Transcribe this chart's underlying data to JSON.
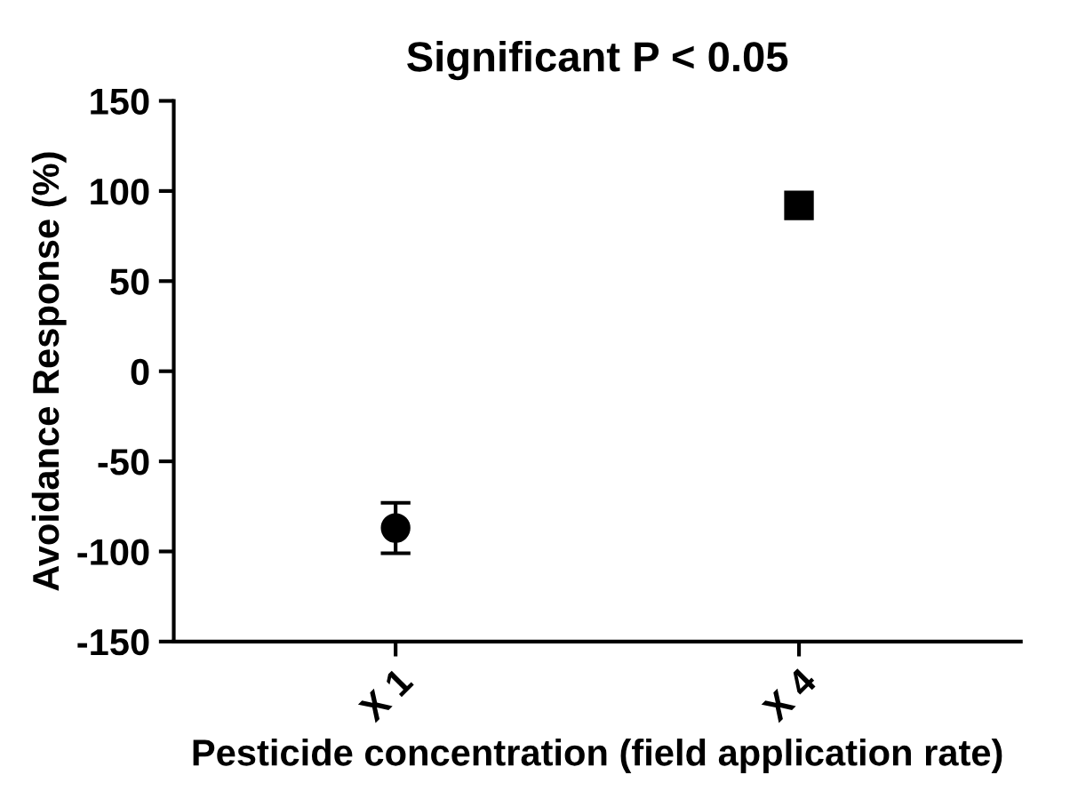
{
  "chart_data": {
    "type": "scatter",
    "title": "Significant P < 0.05",
    "xlabel": "Pesticide concentration (field application rate)",
    "ylabel": "Avoidance Response (%)",
    "categories": [
      "X 1",
      "X 4"
    ],
    "series": [
      {
        "color": "#000000",
        "marker": "circle",
        "values": [
          -87,
          null
        ],
        "errors": [
          [
            -101,
            -73
          ],
          null
        ]
      },
      {
        "color": "#000000",
        "marker": "square",
        "values": [
          null,
          92
        ]
      }
    ],
    "ylim": [
      -150,
      150
    ],
    "yticks": [
      -150,
      -100,
      -50,
      0,
      50,
      100,
      150
    ],
    "grid": false,
    "legend": false
  }
}
